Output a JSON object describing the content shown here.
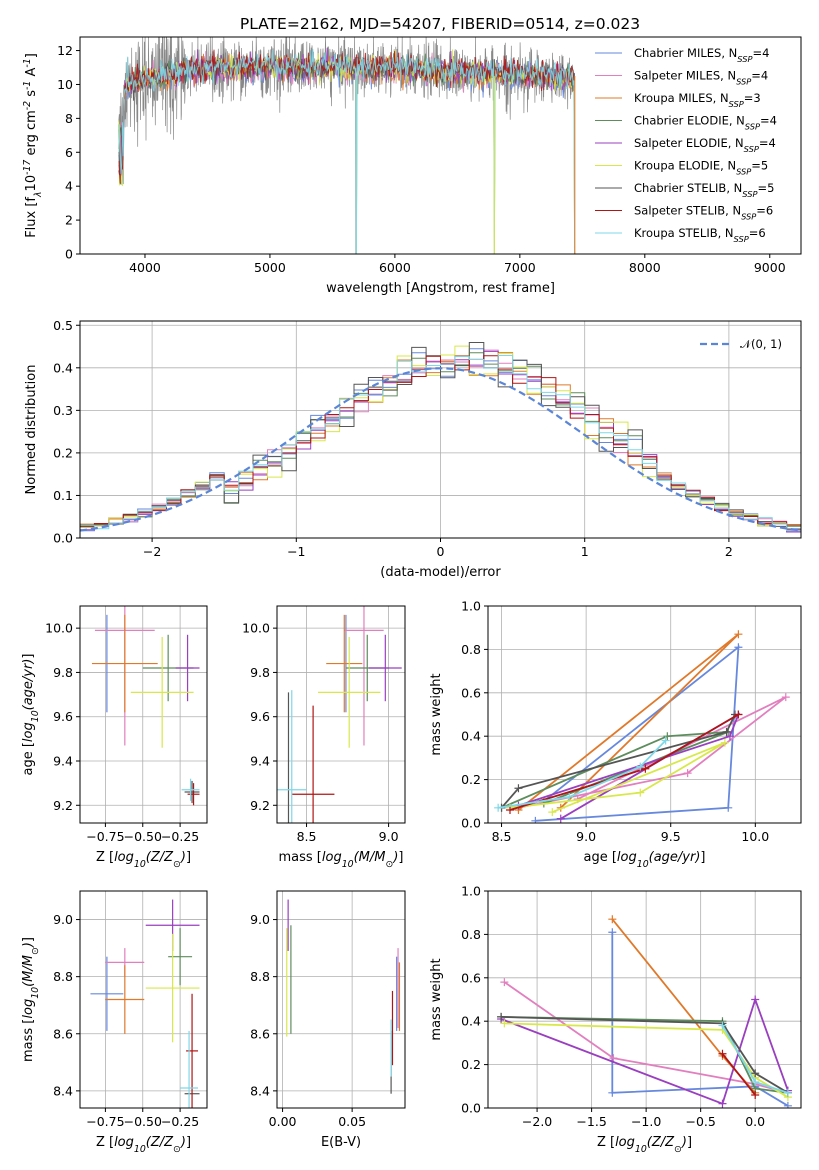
{
  "figure_title": "PLATE=2162, MJD=54207, FIBERID=0514, z=0.023",
  "colors": {
    "chabrier_miles": "#6688dd",
    "salpeter_miles": "#e27fbf",
    "kroupa_miles": "#e0792a",
    "chabrier_elodie": "#5d8c5d",
    "salpeter_elodie": "#9a3fbf",
    "kroupa_elodie": "#d8e84a",
    "chabrier_stelib": "#555555",
    "salpeter_stelib": "#b01515",
    "kroupa_stelib": "#7fd8e8",
    "gaussian": "#5b86d8"
  },
  "chart_data": [
    {
      "id": "spectrum",
      "type": "line",
      "xlabel": "wavelength [Angstrom, rest frame]",
      "ylabel": "Flux [f$_\\lambda$10$^{-17}$ erg cm$^{-2}$ s$^{-1}$ A$^{-1}$]",
      "xlim": [
        3480,
        9250
      ],
      "ylim": [
        0,
        12.8
      ],
      "xticks": [
        4000,
        5000,
        6000,
        7000,
        8000,
        9000
      ],
      "yticks": [
        0,
        2,
        4,
        6,
        8,
        10,
        12
      ],
      "legend_position": "top-right",
      "legend": [
        "Chabrier MILES, N_SSP=4",
        "Salpeter MILES, N_SSP=4",
        "Kroupa MILES, N_SSP=3",
        "Chabrier ELODIE, N_SSP=4",
        "Salpeter ELODIE, N_SSP=4",
        "Kroupa ELODIE, N_SSP=5",
        "Chabrier STELIB, N_SSP=5",
        "Salpeter STELIB, N_SSP=6",
        "Kroupa STELIB, N_SSP=6"
      ],
      "data_range": [
        3790,
        7430
      ],
      "model_level": [
        [
          3790,
          8.0
        ],
        [
          3850,
          10.0
        ],
        [
          4000,
          10.3
        ],
        [
          4200,
          10.6
        ],
        [
          4500,
          10.9
        ],
        [
          5000,
          11.0
        ],
        [
          5500,
          11.0
        ],
        [
          6000,
          10.9
        ],
        [
          6500,
          10.7
        ],
        [
          7000,
          10.6
        ],
        [
          7430,
          10.3
        ]
      ],
      "model_dropouts": [
        5690,
        6795,
        7440
      ]
    },
    {
      "id": "residuals",
      "type": "line",
      "xlabel": "(data-model)/error",
      "ylabel": "Normed distribution",
      "xlim": [
        -2.5,
        2.5
      ],
      "ylim": [
        0,
        0.51
      ],
      "xticks": [
        -2,
        -1,
        0,
        1,
        2
      ],
      "yticks": [
        0.0,
        0.1,
        0.2,
        0.3,
        0.4,
        0.5
      ],
      "legend": [
        "$\\mathcal{N}(0,1)$"
      ],
      "legend_position": "top-right",
      "grid": true,
      "gaussian": {
        "mean": 0,
        "sigma": 1
      },
      "bin_width": 0.1,
      "bin_start": -2.5,
      "hist_offsets": [
        0.02,
        -0.015,
        0.028,
        -0.025,
        0.012,
        -0.03,
        0.035,
        -0.01,
        0.022
      ]
    },
    {
      "id": "age_vs_Z",
      "type": "scatter",
      "xlabel": "Z [$\\log_{10}(Z/Z_\\odot)$]",
      "ylabel": "age  [$\\log_{10}(age/yr)$]",
      "xlim": [
        -0.92,
        -0.07
      ],
      "ylim": [
        9.12,
        10.1
      ],
      "xticks": [
        -0.75,
        -0.5,
        -0.25
      ],
      "yticks": [
        9.2,
        9.4,
        9.6,
        9.8,
        10.0
      ],
      "grid": true,
      "points": [
        {
          "color": "chabrier_miles",
          "x": -0.74,
          "y": 9.84,
          "xerr": 0.0,
          "yerr": 0.22
        },
        {
          "color": "salpeter_miles",
          "x": -0.62,
          "y": 9.99,
          "xerr": 0.2,
          "yerr": 0.52
        },
        {
          "color": "kroupa_miles",
          "x": -0.62,
          "y": 9.84,
          "xerr": 0.22,
          "yerr": 0.22
        },
        {
          "color": "chabrier_elodie",
          "x": -0.33,
          "y": 9.82,
          "xerr": 0.17,
          "yerr": 0.15
        },
        {
          "color": "salpeter_elodie",
          "x": -0.2,
          "y": 9.82,
          "xerr": 0.08,
          "yerr": 0.15
        },
        {
          "color": "kroupa_elodie",
          "x": -0.37,
          "y": 9.71,
          "xerr": 0.21,
          "yerr": 0.25
        },
        {
          "color": "chabrier_stelib",
          "x": -0.17,
          "y": 9.26,
          "xerr": 0.05,
          "yerr": 0.05
        },
        {
          "color": "salpeter_stelib",
          "x": -0.16,
          "y": 9.25,
          "xerr": 0.04,
          "yerr": 0.05
        },
        {
          "color": "kroupa_stelib",
          "x": -0.18,
          "y": 9.27,
          "xerr": 0.06,
          "yerr": 0.05
        }
      ]
    },
    {
      "id": "age_vs_mass",
      "type": "scatter",
      "xlabel": "mass [$\\log_{10}(M/M_\\odot)$]",
      "ylabel": "",
      "xlim": [
        8.32,
        9.1
      ],
      "ylim": [
        9.12,
        10.1
      ],
      "xticks": [
        8.5,
        9.0
      ],
      "yticks": [
        9.2,
        9.4,
        9.6,
        9.8,
        10.0
      ],
      "grid": true,
      "points": [
        {
          "color": "chabrier_miles",
          "x": 8.74,
          "y": 9.84,
          "xerr": 0.0,
          "yerr": 0.22
        },
        {
          "color": "salpeter_miles",
          "x": 8.85,
          "y": 9.99,
          "xerr": 0.12,
          "yerr": 0.52
        },
        {
          "color": "kroupa_miles",
          "x": 8.73,
          "y": 9.84,
          "xerr": 0.11,
          "yerr": 0.22
        },
        {
          "color": "chabrier_elodie",
          "x": 8.87,
          "y": 9.82,
          "xerr": 0.13,
          "yerr": 0.15
        },
        {
          "color": "salpeter_elodie",
          "x": 8.98,
          "y": 9.82,
          "xerr": 0.1,
          "yerr": 0.15
        },
        {
          "color": "kroupa_elodie",
          "x": 8.76,
          "y": 9.71,
          "xerr": 0.19,
          "yerr": 0.25
        },
        {
          "color": "chabrier_stelib",
          "x": 8.39,
          "y": 9.26,
          "xerr": 0.0,
          "yerr": 0.45
        },
        {
          "color": "salpeter_stelib",
          "x": 8.54,
          "y": 9.25,
          "xerr": 0.13,
          "yerr": 0.4
        },
        {
          "color": "kroupa_stelib",
          "x": 8.41,
          "y": 9.27,
          "xerr": 0.09,
          "yerr": 0.45
        }
      ]
    },
    {
      "id": "weight_vs_age",
      "type": "line",
      "xlabel": "age  [$\\log_{10}(age/yr)$]",
      "ylabel": "mass weight",
      "xlim": [
        8.42,
        10.27
      ],
      "ylim": [
        0,
        1.0
      ],
      "xticks": [
        8.5,
        9.0,
        9.5,
        10.0
      ],
      "yticks": [
        0.0,
        0.2,
        0.4,
        0.6,
        0.8,
        1.0
      ],
      "grid": true,
      "series": [
        {
          "color": "chabrier_miles",
          "x": [
            8.7,
            9.84,
            9.9,
            8.75
          ],
          "y": [
            0.01,
            0.07,
            0.81,
            0.1
          ]
        },
        {
          "color": "salpeter_miles",
          "x": [
            8.6,
            9.6,
            10.18,
            8.95
          ],
          "y": [
            0.07,
            0.23,
            0.58,
            0.11
          ]
        },
        {
          "color": "kroupa_miles",
          "x": [
            8.6,
            9.9,
            8.85
          ],
          "y": [
            0.06,
            0.87,
            0.07
          ]
        },
        {
          "color": "chabrier_elodie",
          "x": [
            8.5,
            9.48,
            9.84,
            8.75
          ],
          "y": [
            0.07,
            0.4,
            0.42,
            0.09
          ]
        },
        {
          "color": "salpeter_elodie",
          "x": [
            8.85,
            9.9,
            9.85,
            8.6
          ],
          "y": [
            0.02,
            0.5,
            0.4,
            0.08
          ]
        },
        {
          "color": "kroupa_elodie",
          "x": [
            8.55,
            9.32,
            9.82,
            8.8
          ],
          "y": [
            0.07,
            0.14,
            0.37,
            0.05
          ]
        },
        {
          "color": "chabrier_stelib",
          "x": [
            8.5,
            8.6,
            9.83,
            9.88
          ],
          "y": [
            0.07,
            0.16,
            0.42,
            0.5
          ]
        },
        {
          "color": "salpeter_stelib",
          "x": [
            8.55,
            9.35,
            9.9
          ],
          "y": [
            0.06,
            0.25,
            0.5
          ]
        },
        {
          "color": "kroupa_stelib",
          "x": [
            8.48,
            8.9,
            9.32,
            9.47
          ],
          "y": [
            0.07,
            0.12,
            0.26,
            0.38
          ]
        }
      ]
    },
    {
      "id": "mass_vs_Z",
      "type": "scatter",
      "xlabel": "Z [$\\log_{10}(Z/Z_\\odot)$]",
      "ylabel": "mass [$\\log_{10}(M/M_\\odot)$]",
      "xlim": [
        -0.92,
        -0.07
      ],
      "ylim": [
        8.34,
        9.1
      ],
      "xticks": [
        -0.75,
        -0.5,
        -0.25
      ],
      "yticks": [
        8.4,
        8.6,
        8.8,
        9.0
      ],
      "grid": true,
      "points": [
        {
          "color": "chabrier_miles",
          "x": -0.74,
          "y": 8.74,
          "xerr": 0.11,
          "yerr": 0.13
        },
        {
          "color": "salpeter_miles",
          "x": -0.62,
          "y": 8.85,
          "xerr": 0.13,
          "yerr": 0.05
        },
        {
          "color": "kroupa_miles",
          "x": -0.62,
          "y": 8.72,
          "xerr": 0.13,
          "yerr": 0.12
        },
        {
          "color": "chabrier_elodie",
          "x": -0.25,
          "y": 8.87,
          "xerr": 0.08,
          "yerr": 0.1
        },
        {
          "color": "salpeter_elodie",
          "x": -0.3,
          "y": 8.98,
          "xerr": 0.18,
          "yerr": 0.09
        },
        {
          "color": "kroupa_elodie",
          "x": -0.3,
          "y": 8.76,
          "xerr": 0.18,
          "yerr": 0.19
        },
        {
          "color": "chabrier_stelib",
          "x": -0.17,
          "y": 8.39,
          "xerr": 0.05,
          "yerr": 0.0
        },
        {
          "color": "salpeter_stelib",
          "x": -0.17,
          "y": 8.54,
          "xerr": 0.04,
          "yerr": 0.2
        },
        {
          "color": "kroupa_stelib",
          "x": -0.19,
          "y": 8.41,
          "xerr": 0.06,
          "yerr": 0.2
        }
      ]
    },
    {
      "id": "mass_vs_EBV",
      "type": "scatter",
      "xlabel": "E(B-V)",
      "ylabel": "",
      "xlim": [
        -0.004,
        0.088
      ],
      "ylim": [
        8.34,
        9.1
      ],
      "xticks": [
        0.0,
        0.05
      ],
      "yticks": [
        8.4,
        8.6,
        8.8,
        9.0
      ],
      "grid": true,
      "points": [
        {
          "color": "chabrier_miles",
          "x": 0.082,
          "y": 8.74,
          "xerr": 0.0,
          "yerr": 0.13
        },
        {
          "color": "salpeter_miles",
          "x": 0.083,
          "y": 8.76,
          "xerr": 0.0,
          "yerr": 0.14
        },
        {
          "color": "kroupa_miles",
          "x": 0.084,
          "y": 8.73,
          "xerr": 0.0,
          "yerr": 0.12
        },
        {
          "color": "chabrier_elodie",
          "x": 0.006,
          "y": 8.79,
          "xerr": 0.0,
          "yerr": 0.19
        },
        {
          "color": "salpeter_elodie",
          "x": 0.004,
          "y": 8.98,
          "xerr": 0.0,
          "yerr": 0.09
        },
        {
          "color": "kroupa_elodie",
          "x": 0.003,
          "y": 8.78,
          "xerr": 0.0,
          "yerr": 0.19
        },
        {
          "color": "chabrier_stelib",
          "x": 0.078,
          "y": 8.5,
          "xerr": 0.0,
          "yerr": 0.11
        },
        {
          "color": "salpeter_stelib",
          "x": 0.079,
          "y": 8.62,
          "xerr": 0.0,
          "yerr": 0.13
        },
        {
          "color": "kroupa_stelib",
          "x": 0.078,
          "y": 8.55,
          "xerr": 0.0,
          "yerr": 0.1
        }
      ]
    },
    {
      "id": "weight_vs_Z",
      "type": "line",
      "xlabel": "Z [$\\log_{10}(Z/Z_\\odot)$]",
      "ylabel": "mass weight",
      "xlim": [
        -2.45,
        0.42
      ],
      "ylim": [
        0,
        1.0
      ],
      "xticks": [
        -2.0,
        -1.5,
        -1.0,
        -0.5,
        0.0
      ],
      "yticks": [
        0.0,
        0.2,
        0.4,
        0.6,
        0.8,
        1.0
      ],
      "grid": true,
      "series": [
        {
          "color": "chabrier_miles",
          "x": [
            -1.31,
            -1.31,
            0.0,
            0.3
          ],
          "y": [
            0.81,
            0.07,
            0.1,
            0.01
          ]
        },
        {
          "color": "salpeter_miles",
          "x": [
            -2.3,
            -1.3,
            0.0,
            0.3
          ],
          "y": [
            0.58,
            0.23,
            0.11,
            0.07
          ]
        },
        {
          "color": "kroupa_miles",
          "x": [
            -1.31,
            -0.3,
            0.0
          ],
          "y": [
            0.87,
            0.24,
            0.07
          ]
        },
        {
          "color": "chabrier_elodie",
          "x": [
            -2.33,
            -0.3,
            0.0,
            0.3
          ],
          "y": [
            0.42,
            0.4,
            0.09,
            0.07
          ]
        },
        {
          "color": "salpeter_elodie",
          "x": [
            -2.33,
            -0.3,
            0.0,
            0.3
          ],
          "y": [
            0.41,
            0.02,
            0.5,
            0.08
          ]
        },
        {
          "color": "kroupa_elodie",
          "x": [
            -2.3,
            -0.3,
            0.0,
            0.3
          ],
          "y": [
            0.39,
            0.36,
            0.14,
            0.05
          ]
        },
        {
          "color": "chabrier_stelib",
          "x": [
            -2.33,
            -0.3,
            0.0,
            0.3
          ],
          "y": [
            0.42,
            0.39,
            0.16,
            0.07
          ]
        },
        {
          "color": "salpeter_stelib",
          "x": [
            -0.3,
            0.0
          ],
          "y": [
            0.25,
            0.06
          ]
        },
        {
          "color": "kroupa_stelib",
          "x": [
            -0.3,
            0.0,
            0.3
          ],
          "y": [
            0.38,
            0.12,
            0.07
          ]
        }
      ]
    }
  ]
}
